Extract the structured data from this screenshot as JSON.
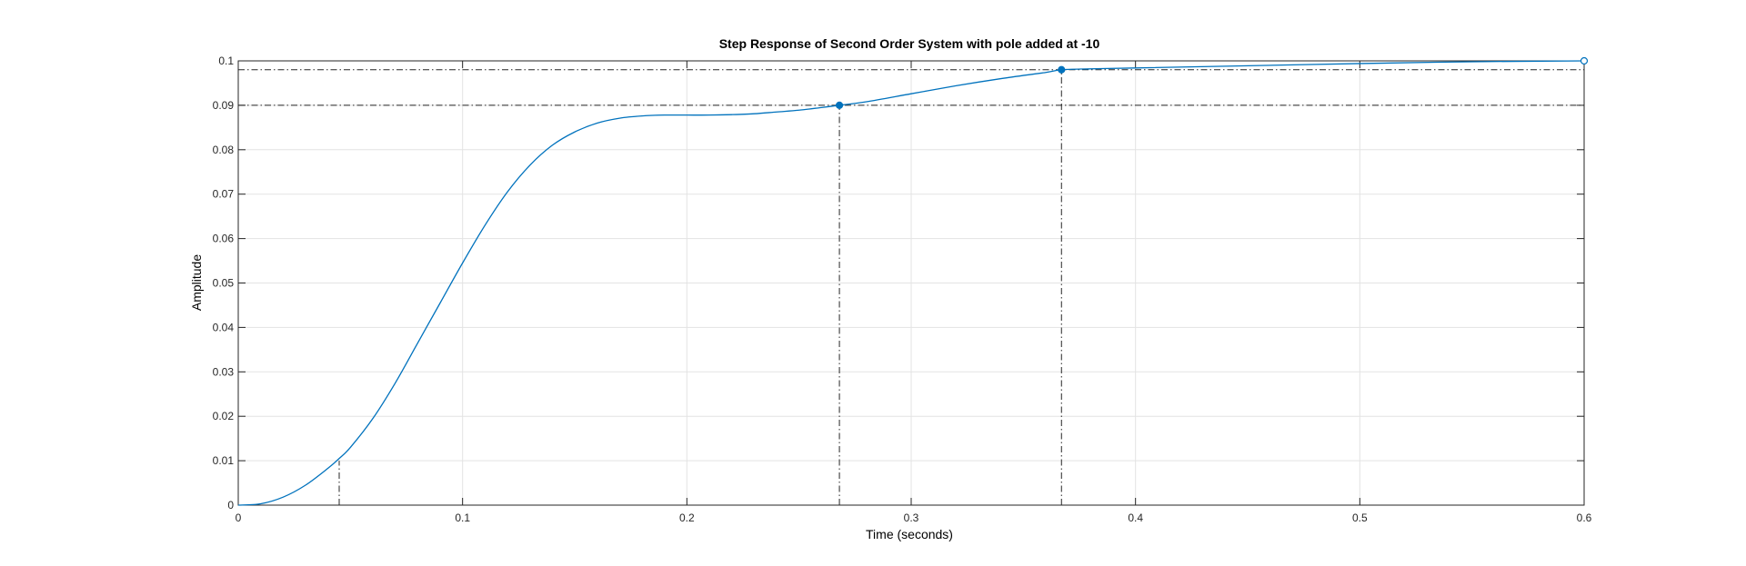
{
  "chart_data": {
    "type": "line",
    "title": "Step Response of Second Order System with pole added at -10",
    "xlabel": "Time (seconds)",
    "ylabel": "Amplitude",
    "xlim": [
      0,
      0.6
    ],
    "ylim": [
      0,
      0.1
    ],
    "grid": true,
    "legend": "none",
    "xticks": [
      0,
      0.1,
      0.2,
      0.3,
      0.4,
      0.5,
      0.6
    ],
    "xtick_labels": [
      "0",
      "0.1",
      "0.2",
      "0.3",
      "0.4",
      "0.5",
      "0.6"
    ],
    "yticks": [
      0,
      0.01,
      0.02,
      0.03,
      0.04,
      0.05,
      0.06,
      0.07,
      0.08,
      0.09,
      0.1
    ],
    "ytick_labels": [
      "0",
      "0.01",
      "0.02",
      "0.03",
      "0.04",
      "0.05",
      "0.06",
      "0.07",
      "0.08",
      "0.09",
      "0.1"
    ],
    "series": [
      {
        "color": "#0072BD",
        "x": [
          0,
          0.01,
          0.02,
          0.03,
          0.04,
          0.045,
          0.05,
          0.06,
          0.07,
          0.08,
          0.09,
          0.1,
          0.11,
          0.12,
          0.13,
          0.14,
          0.15,
          0.16,
          0.17,
          0.18,
          0.19,
          0.2,
          0.21,
          0.22,
          0.23,
          0.24,
          0.25,
          0.26,
          0.268,
          0.28,
          0.3,
          0.32,
          0.34,
          0.36,
          0.367,
          0.38,
          0.4,
          0.44,
          0.5,
          0.55,
          0.6
        ],
        "y": [
          0,
          0.0003,
          0.0018,
          0.0045,
          0.0083,
          0.0105,
          0.013,
          0.0195,
          0.0275,
          0.0365,
          0.0455,
          0.0545,
          0.063,
          0.0705,
          0.0765,
          0.081,
          0.084,
          0.086,
          0.0871,
          0.0876,
          0.0878,
          0.0878,
          0.0878,
          0.0879,
          0.0881,
          0.0885,
          0.0889,
          0.0895,
          0.09,
          0.0908,
          0.0926,
          0.0944,
          0.096,
          0.0974,
          0.098,
          0.0982,
          0.0984,
          0.0988,
          0.0994,
          0.0998,
          0.1
        ]
      }
    ],
    "markers": [
      {
        "name": "rise-start",
        "x": 0.045,
        "y": 0.01,
        "filled": false,
        "visible": false
      },
      {
        "name": "rise-end",
        "x": 0.268,
        "y": 0.09,
        "filled": true,
        "visible": true
      },
      {
        "name": "settling",
        "x": 0.367,
        "y": 0.098,
        "filled": true,
        "visible": true
      },
      {
        "name": "final-value",
        "x": 0.6,
        "y": 0.1,
        "filled": false,
        "visible": true
      }
    ],
    "reference_lines": {
      "horizontal": [
        0.1,
        0.098,
        0.09
      ],
      "vertical": [
        {
          "x": 0.045,
          "y": 0.01
        },
        {
          "x": 0.268,
          "y": 0.09
        },
        {
          "x": 0.367,
          "y": 0.098
        }
      ]
    }
  }
}
